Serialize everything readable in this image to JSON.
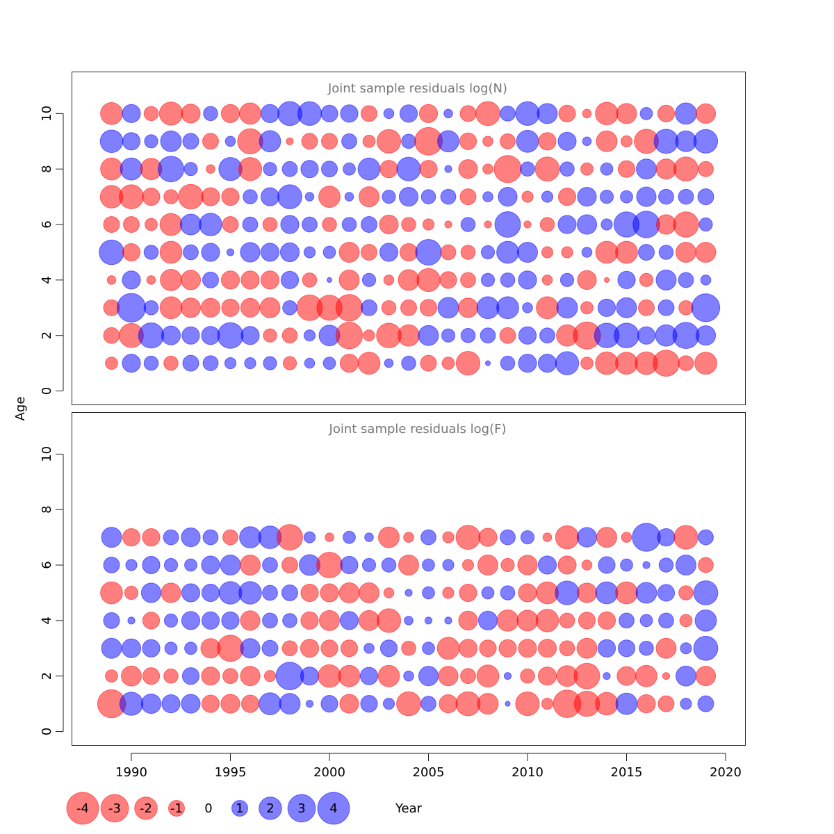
{
  "chart_data": {
    "type": "bubble",
    "xlabel": "Year",
    "ylabel": "Age",
    "xlim": [
      1987,
      2021
    ],
    "ylim": [
      -0.5,
      11.5
    ],
    "xticks": [
      1990,
      1995,
      2000,
      2005,
      2010,
      2015,
      2020
    ],
    "yticks": [
      0,
      2,
      4,
      6,
      8,
      10
    ],
    "years": [
      1989,
      1990,
      1991,
      1992,
      1993,
      1994,
      1995,
      1996,
      1997,
      1998,
      1999,
      2000,
      2001,
      2002,
      2003,
      2004,
      2005,
      2006,
      2007,
      2008,
      2009,
      2010,
      2011,
      2012,
      2013,
      2014,
      2015,
      2016,
      2017,
      2018,
      2019
    ],
    "colors": {
      "positive": "#0000ff",
      "negative": "#ff0000",
      "fill_opacity": 0.5
    },
    "panels": [
      {
        "title": "Joint sample residuals log(N)",
        "ages": [
          1,
          2,
          3,
          4,
          5,
          6,
          7,
          8,
          9,
          10
        ],
        "residuals": [
          [
            -0.6,
            -1.0,
            -1.0,
            -0.3,
            2.4,
            -1.0,
            -2.0,
            -1.9,
            2.0,
            -1.9
          ],
          [
            1.3,
            -2.3,
            3.2,
            1.3,
            -1.2,
            -1.0,
            -2.3,
            1.9,
            1.2,
            1.3
          ],
          [
            0.8,
            2.5,
            0.8,
            -0.3,
            0.8,
            -0.6,
            -1.2,
            -1.8,
            0.7,
            -0.8
          ],
          [
            -0.8,
            1.4,
            -1.9,
            -1.8,
            -1.9,
            -1.9,
            -0.8,
            2.6,
            1.7,
            -2.1
          ],
          [
            1.0,
            1.2,
            -1.5,
            -1.5,
            0.9,
            1.7,
            -2.4,
            0.7,
            1.0,
            -1.4
          ],
          [
            0.9,
            1.3,
            -1.4,
            1.0,
            1.3,
            2.0,
            -1.3,
            -0.3,
            -1.0,
            0.8
          ],
          [
            0.5,
            2.6,
            -1.2,
            -1.3,
            0.2,
            -1.0,
            -1.2,
            2.1,
            0.4,
            -1.3
          ],
          [
            0.5,
            1.3,
            -1.4,
            -1.3,
            1.5,
            0.9,
            0.8,
            -2.1,
            -2.5,
            -1.8
          ],
          [
            0.7,
            -0.7,
            -1.6,
            -1.3,
            1.3,
            -0.8,
            1.3,
            0.7,
            1.8,
            1.3
          ],
          [
            -0.7,
            -0.9,
            0.8,
            1.2,
            1.4,
            1.3,
            2.3,
            0.9,
            -0.2,
            2.3
          ],
          [
            0.4,
            0.5,
            -2.6,
            -0.8,
            0.5,
            0.9,
            0.3,
            1.2,
            -1.0,
            2.2
          ],
          [
            0.6,
            1.7,
            -2.5,
            0.1,
            0.6,
            -0.8,
            -1.8,
            1.0,
            -1.0,
            1.1
          ],
          [
            -1.3,
            -2.8,
            -2.8,
            -1.6,
            -1.6,
            0.8,
            0.3,
            0.6,
            0.9,
            1.2
          ],
          [
            -1.9,
            -0.5,
            1.0,
            0.7,
            -1.0,
            1.0,
            -1.6,
            1.9,
            -0.6,
            -1.0
          ],
          [
            0.3,
            -2.4,
            -0.8,
            -0.4,
            1.3,
            -1.4,
            0.7,
            -1.2,
            -2.2,
            0.4
          ],
          [
            0.8,
            -1.8,
            -1.0,
            -1.7,
            -1.2,
            -0.8,
            1.4,
            2.2,
            0.8,
            1.2
          ],
          [
            -1.0,
            1.6,
            -1.1,
            -2.1,
            2.6,
            -0.5,
            0.8,
            -1.2,
            -3.0,
            -1.3
          ],
          [
            -0.6,
            0.7,
            1.7,
            -1.1,
            -0.9,
            -0.2,
            0.9,
            0.2,
            1.8,
            0.3
          ],
          [
            -2.2,
            0.8,
            -1.5,
            -0.9,
            -0.8,
            0.8,
            -1.0,
            -1.4,
            -1.1,
            -1.0
          ],
          [
            0.1,
            0.9,
            1.9,
            0.7,
            0.7,
            -0.2,
            0.4,
            -0.4,
            -0.4,
            -2.3
          ],
          [
            0.8,
            -1.0,
            1.9,
            0.8,
            1.9,
            2.6,
            1.4,
            -2.9,
            -0.9,
            0.9
          ],
          [
            1.3,
            1.2,
            0.4,
            1.3,
            1.6,
            -0.2,
            -0.5,
            0.8,
            1.9,
            2.2
          ],
          [
            1.3,
            0.9,
            -1.9,
            -0.4,
            -0.5,
            -0.8,
            0.5,
            -2.3,
            -1.2,
            1.6
          ],
          [
            2.1,
            -1.8,
            1.7,
            0.7,
            -0.5,
            1.3,
            -1.2,
            0.8,
            1.3,
            -1.1
          ],
          [
            -0.6,
            -2.9,
            -0.6,
            -1.4,
            0.4,
            1.5,
            1.4,
            -0.6,
            0.3,
            -0.3
          ],
          [
            -2.0,
            2.4,
            1.2,
            -0.1,
            -1.9,
            0.5,
            0.7,
            0.6,
            -1.7,
            -2.0
          ],
          [
            -1.9,
            2.4,
            1.6,
            1.2,
            -1.9,
            2.5,
            0.6,
            -1.1,
            -0.5,
            -1.6
          ],
          [
            -2.0,
            1.2,
            -1.0,
            -0.7,
            1.0,
            2.8,
            1.5,
            1.6,
            -2.3,
            0.6
          ],
          [
            -2.7,
            1.8,
            1.0,
            1.6,
            0.8,
            -1.5,
            0.9,
            -1.6,
            2.3,
            -1.1
          ],
          [
            -0.9,
            2.7,
            -0.8,
            0.9,
            -1.6,
            -2.5,
            0.9,
            -2.3,
            1.7,
            1.8
          ],
          [
            -1.9,
            1.5,
            3.1,
            0.4,
            -1.6,
            0.7,
            1.0,
            -0.9,
            2.2,
            -1.5
          ]
        ]
      },
      {
        "title": "Joint sample residuals log(F)",
        "ages": [
          1,
          2,
          3,
          4,
          5,
          6,
          7
        ],
        "residuals": [
          [
            -3.1,
            -0.6,
            1.6,
            1.0,
            -1.9,
            1.0,
            1.6
          ],
          [
            2.1,
            -1.6,
            1.4,
            0.2,
            -0.7,
            0.5,
            -1.2
          ],
          [
            1.5,
            -1.1,
            1.2,
            -1.1,
            1.5,
            1.2,
            -1.2
          ],
          [
            1.3,
            -0.8,
            0.6,
            0.7,
            -1.5,
            0.7,
            0.9
          ],
          [
            1.4,
            1.1,
            0.6,
            1.3,
            1.3,
            0.6,
            1.4
          ],
          [
            -1.2,
            -1.3,
            -1.5,
            1.2,
            1.2,
            1.3,
            0.9
          ],
          [
            -1.4,
            -0.9,
            -2.7,
            1.2,
            2.0,
            1.6,
            -0.9
          ],
          [
            -1.2,
            -1.5,
            1.5,
            -1.5,
            2.0,
            -1.6,
            1.8
          ],
          [
            1.9,
            -0.5,
            1.0,
            0.9,
            0.9,
            0.9,
            2.0
          ],
          [
            1.7,
            3.0,
            -0.9,
            0.8,
            1.0,
            -1.0,
            -2.6
          ],
          [
            0.2,
            1.3,
            -1.3,
            -1.2,
            -1.2,
            1.7,
            0.5
          ],
          [
            1.1,
            -2.0,
            -1.1,
            -1.6,
            -1.3,
            -2.6,
            -0.3
          ],
          [
            -1.4,
            -1.8,
            -1.1,
            1.3,
            -1.6,
            1.2,
            0.6
          ],
          [
            1.1,
            1.2,
            0.4,
            -1.6,
            -1.6,
            0.7,
            0.3
          ],
          [
            0.5,
            -1.8,
            1.1,
            -2.2,
            -0.4,
            0.8,
            -1.7
          ],
          [
            -2.3,
            0.4,
            -0.8,
            0.3,
            0.2,
            -1.6,
            -0.4
          ],
          [
            0.9,
            1.5,
            0.6,
            0.2,
            0.6,
            0.6,
            0.9
          ],
          [
            -1.3,
            -1.5,
            -1.9,
            0.2,
            -0.5,
            0.5,
            -0.5
          ],
          [
            -2.3,
            -0.9,
            -1.3,
            -1.4,
            -1.2,
            -0.5,
            -2.3
          ],
          [
            -1.7,
            -1.9,
            -1.1,
            1.4,
            0.6,
            -1.6,
            -1.3
          ],
          [
            0.1,
            0.2,
            -1.2,
            -1.8,
            0.8,
            -0.7,
            0.9
          ],
          [
            -2.2,
            -0.8,
            -1.3,
            -1.7,
            -1.3,
            -1.5,
            0.7
          ],
          [
            -0.5,
            -1.3,
            -1.3,
            -2.0,
            -1.9,
            1.3,
            -0.3
          ],
          [
            -3.0,
            -1.7,
            -0.9,
            -0.9,
            2.2,
            -1.3,
            -2.1
          ],
          [
            -2.5,
            -2.6,
            -1.6,
            -1.1,
            -1.5,
            -0.4,
            1.5
          ],
          [
            -2.0,
            0.2,
            1.2,
            -1.2,
            1.9,
            1.1,
            -1.6
          ],
          [
            1.8,
            -1.4,
            1.1,
            0.9,
            -1.9,
            0.6,
            -0.4
          ],
          [
            -1.3,
            -1.8,
            0.8,
            0.6,
            1.7,
            0.2,
            3.1
          ],
          [
            -1.0,
            -0.2,
            -1.6,
            0.9,
            1.1,
            0.8,
            1.2
          ],
          [
            0.5,
            1.6,
            0.5,
            -0.6,
            -0.8,
            1.6,
            -2.2
          ],
          [
            1.0,
            -1.5,
            2.3,
            1.8,
            2.3,
            -0.9,
            0.9
          ]
        ]
      }
    ],
    "legend": {
      "position": "bottom-left",
      "values": [
        -4,
        -3,
        -2,
        -1,
        0,
        1,
        2,
        3,
        4
      ],
      "labels": [
        "-4",
        "-3",
        "-2",
        "-1",
        "0",
        "1",
        "2",
        "3",
        "4"
      ]
    }
  }
}
